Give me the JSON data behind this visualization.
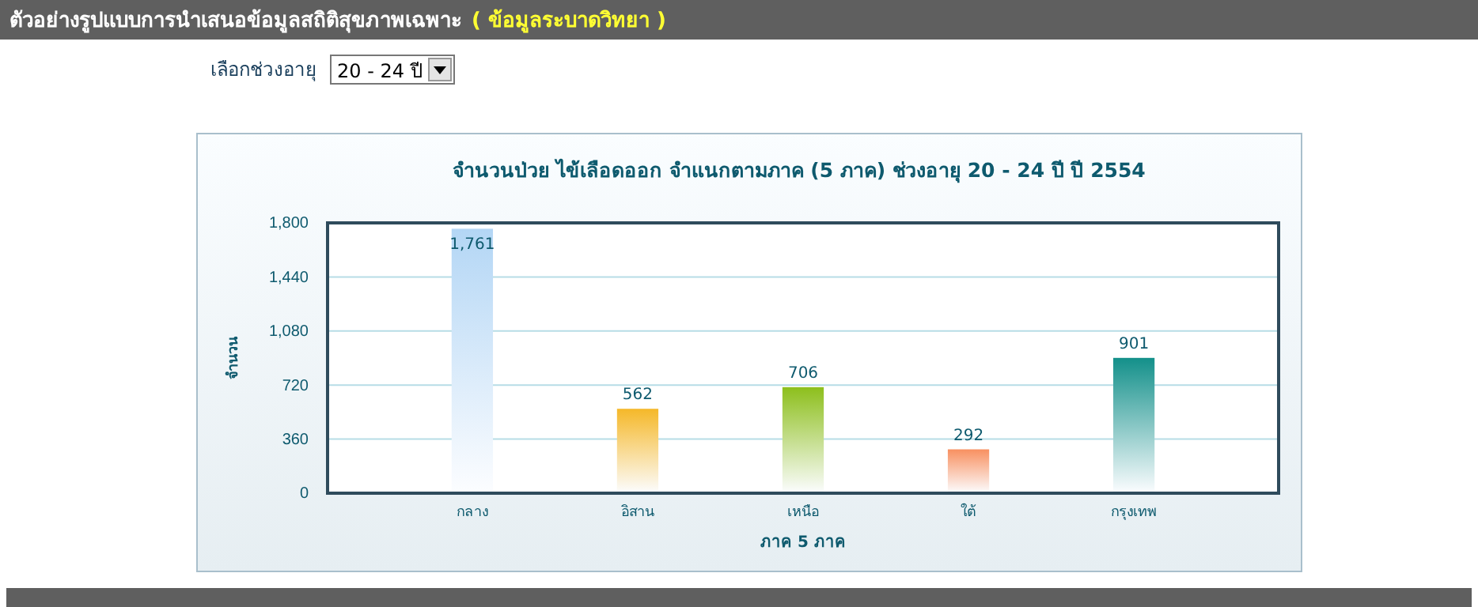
{
  "chart_data": {
    "type": "bar",
    "title": "จำนวนป่วย ไข้เลือดออก  จำแนกตามภาค (5 ภาค) ช่วงอายุ 20 - 24 ปี ปี 2554",
    "xlabel": "ภาค 5 ภาค",
    "ylabel": "จำนวน",
    "annotations": [
      "ตัวอย่างรูปแบบการนำเสนอข้อมูลสถิติสุขภาพเฉพาะ",
      "( ข้อมูลระบาดวิทยา )",
      "เลือกช่วงอายุ",
      "20 - 24 ปี"
    ],
    "categories": [
      "กลาง",
      "อิสาน",
      "เหนือ",
      "ใต้",
      "กรุงเทพ"
    ],
    "values": [
      1761,
      562,
      706,
      292,
      901
    ],
    "colors": [
      "#b3d6f5",
      "#f5b829",
      "#8dbf1c",
      "#f89060",
      "#13908a"
    ],
    "ylim": [
      0,
      1800
    ],
    "yticks": [
      0,
      {
        "value": 360,
        "label": "360"
      },
      {
        "value": 720,
        "label": "720"
      },
      {
        "value": 1080,
        "label": "1,080"
      },
      {
        "value": 1440,
        "label": "1,440"
      },
      {
        "value": 1800,
        "label": "1,800"
      }
    ],
    "grid": "y",
    "value_labels": [
      "1,761",
      "562",
      "706",
      "292",
      "901"
    ]
  }
}
